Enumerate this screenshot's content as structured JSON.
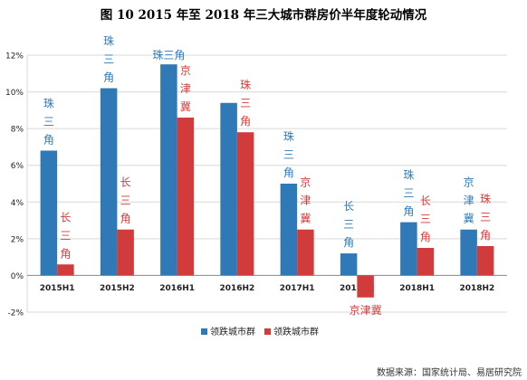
{
  "title": "图 10   2015 年至 2018 年三大城市群房价半年度轮动情况",
  "source": "数据来源：国家统计局、易居研究院",
  "colors": {
    "lead": "#2f79b7",
    "follow": "#d23b3b",
    "grid": "#d9d9d9",
    "axis": "#888888"
  },
  "chart_data": {
    "type": "bar",
    "categories": [
      "2015H1",
      "2015H2",
      "2016H1",
      "2016H2",
      "2017H1",
      "2017H2",
      "2018H1",
      "2018H2"
    ],
    "y_ticks": [
      "12%",
      "10%",
      "8%",
      "6%",
      "4%",
      "2%",
      "0%",
      "-2%"
    ],
    "ylim": [
      -2,
      12
    ],
    "grid": true,
    "legend_position": "bottom",
    "series": [
      {
        "name": "领跌城市群",
        "values": [
          6.8,
          10.2,
          11.5,
          9.4,
          5.0,
          1.2,
          2.9,
          2.5
        ],
        "labels": [
          "珠三角",
          "珠三角",
          "珠三角",
          "",
          "珠三角",
          "长三角",
          "珠三角",
          "京津冀"
        ]
      },
      {
        "name": "领跌城市群",
        "values": [
          0.6,
          2.5,
          8.6,
          7.8,
          2.5,
          -1.2,
          1.5,
          1.6
        ],
        "labels": [
          "长三角",
          "长三角",
          "京津冀",
          "珠三角",
          "京津冀",
          "京津冀",
          "长三角",
          "珠三角"
        ]
      }
    ],
    "annotation_text": {
      "2016H2": "珠三角"
    }
  }
}
